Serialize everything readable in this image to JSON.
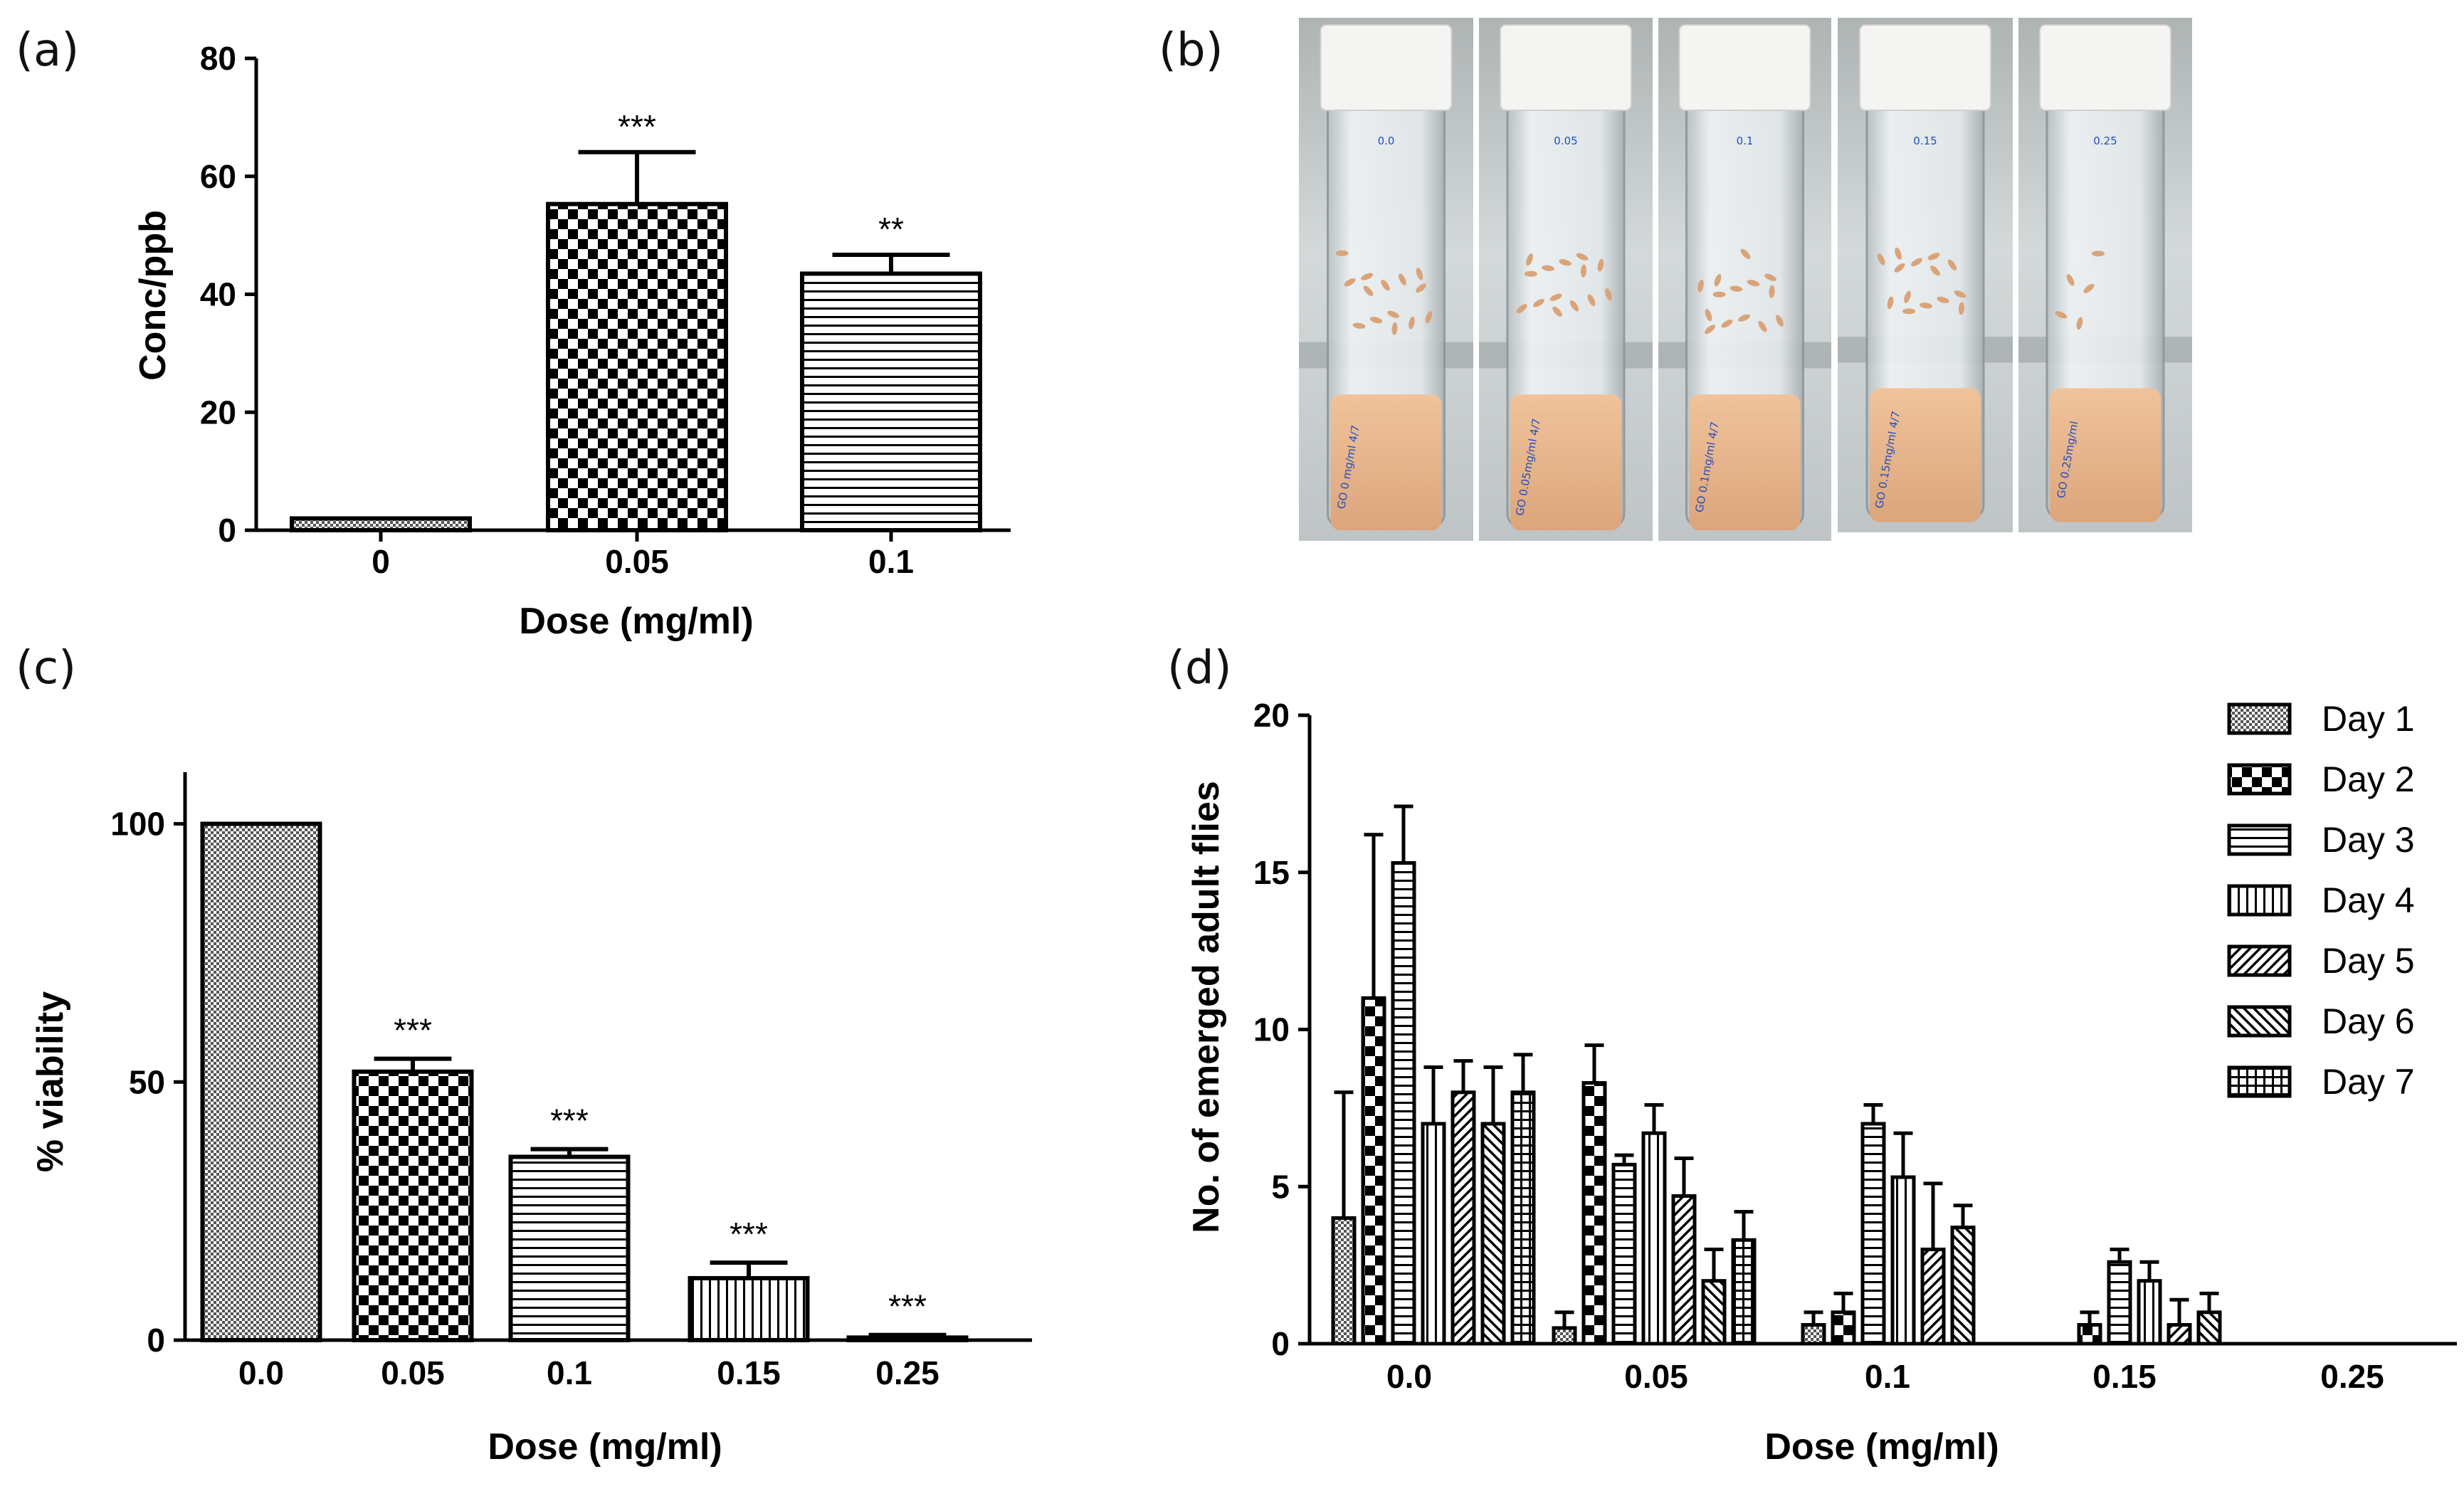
{
  "figure": {
    "panels": [
      {
        "label": "(a)"
      },
      {
        "label": "(b)"
      },
      {
        "label": "(c)"
      },
      {
        "label": "(d)"
      }
    ]
  },
  "photo": {
    "tubes": [
      {
        "cap_label": "0.0",
        "side_label": "GO 0 mg/ml 4/7"
      },
      {
        "cap_label": "0.05",
        "side_label": "GO 0.05mg/ml 4/7"
      },
      {
        "cap_label": "0.1",
        "side_label": "GO 0.1mg/ml 4/7"
      },
      {
        "cap_label": "0.15",
        "side_label": "GO 0.15mg/ml 4/7"
      },
      {
        "cap_label": "0.25",
        "side_label": "GO 0.25mg/ml"
      }
    ],
    "colors": {
      "cap": "#f4f4f2",
      "glass": "#e6ebee",
      "medium": "#e9b98e",
      "larvae": "#d9a47a",
      "background": "#c9cfd1"
    }
  },
  "chart_data": [
    {
      "id": "a",
      "type": "bar",
      "title": "",
      "xlabel": "Dose (mg/ml)",
      "ylabel": "Conc/ppb",
      "ylim": [
        0,
        80
      ],
      "yticks": [
        "0",
        "20",
        "40",
        "60",
        "80"
      ],
      "categories": [
        "0",
        "0.05",
        "0.1"
      ],
      "values": [
        2,
        55.3,
        43.5
      ],
      "errors": [
        0,
        8.8,
        3.2
      ],
      "patterns": [
        "fine-check",
        "coarse-check",
        "horizontal"
      ],
      "significance": [
        "",
        "***",
        "**"
      ]
    },
    {
      "id": "c",
      "type": "bar",
      "title": "",
      "xlabel": "Dose (mg/ml)",
      "ylabel": "% viability",
      "ylim": [
        0,
        110
      ],
      "yticks": [
        "0",
        "50",
        "100"
      ],
      "categories": [
        "0.0",
        "0.05",
        "0.1",
        "0.15",
        "0.25"
      ],
      "values": [
        100,
        52,
        35.5,
        12,
        0.5
      ],
      "errors": [
        0,
        2.5,
        1.5,
        3,
        0.5
      ],
      "patterns": [
        "fine-check",
        "coarse-check",
        "horizontal",
        "vertical",
        "horizontal"
      ],
      "significance": [
        "",
        "***",
        "***",
        "***",
        "***"
      ]
    },
    {
      "id": "d",
      "type": "bar",
      "title": "",
      "xlabel": "Dose (mg/ml)",
      "ylabel": "No. of emerged adult flies",
      "ylim": [
        0,
        20
      ],
      "yticks": [
        "0",
        "5",
        "10",
        "15",
        "20"
      ],
      "categories": [
        "0.0",
        "0.05",
        "0.1",
        "0.15",
        "0.25"
      ],
      "legend_position": "top-right",
      "series": [
        {
          "name": "Day 1",
          "pattern": "fine-check",
          "values": [
            4,
            0.5,
            0.6,
            0,
            0
          ],
          "errors": [
            4,
            0.5,
            0.4,
            0,
            0
          ]
        },
        {
          "name": "Day 2",
          "pattern": "coarse-check",
          "values": [
            11,
            8.3,
            1,
            0.6,
            0
          ],
          "errors": [
            5.2,
            1.2,
            0.6,
            0.4,
            0
          ]
        },
        {
          "name": "Day 3",
          "pattern": "horizontal",
          "values": [
            15.3,
            5.7,
            7,
            2.6,
            0
          ],
          "errors": [
            1.8,
            0.3,
            0.6,
            0.4,
            0
          ]
        },
        {
          "name": "Day 4",
          "pattern": "vertical",
          "values": [
            7,
            6.7,
            5.3,
            2,
            0
          ],
          "errors": [
            1.8,
            0.9,
            1.4,
            0.6,
            0
          ]
        },
        {
          "name": "Day 5",
          "pattern": "diag-up",
          "values": [
            8,
            4.7,
            3,
            0.6,
            0
          ],
          "errors": [
            1,
            1.2,
            2.1,
            0.8,
            0
          ]
        },
        {
          "name": "Day 6",
          "pattern": "diag-down",
          "values": [
            7,
            2,
            3.7,
            1,
            0
          ],
          "errors": [
            1.8,
            1,
            0.7,
            0.6,
            0
          ]
        },
        {
          "name": "Day 7",
          "pattern": "grid",
          "values": [
            8,
            3.3,
            0,
            0,
            0.3
          ],
          "errors": [
            1.2,
            0.9,
            0,
            0,
            0.3
          ]
        }
      ]
    }
  ]
}
